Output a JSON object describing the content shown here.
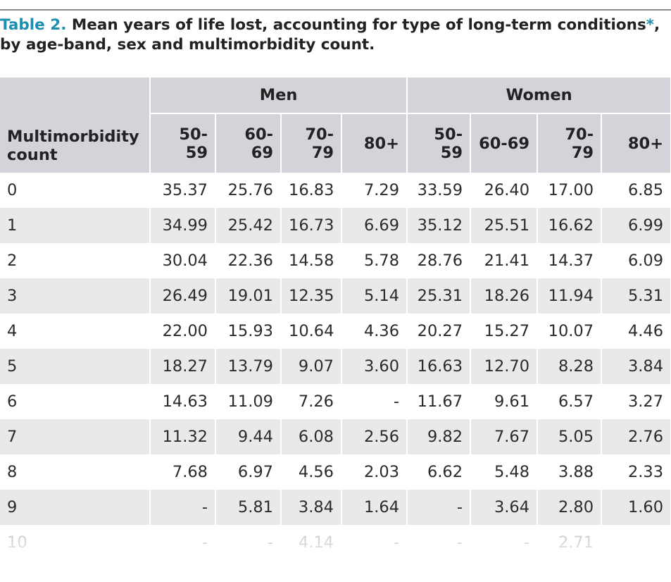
{
  "caption": {
    "label": "Table 2.",
    "text": " Mean years of life lost, accounting for type of long-term conditions",
    "star": "*",
    "text_end": ",",
    "line2": "by age-band, sex and multimorbidity count."
  },
  "table": {
    "group_headers": [
      "Men",
      "Women"
    ],
    "row_header": "Multimorbidity count",
    "columns": [
      "50-59",
      "60-69",
      "70-79",
      "80+",
      "50-59",
      "60-69",
      "70-79",
      "80+"
    ],
    "rows": [
      {
        "label": "0",
        "values": [
          "35.37",
          "25.76",
          "16.83",
          "7.29",
          "33.59",
          "26.40",
          "17.00",
          "6.85"
        ]
      },
      {
        "label": "1",
        "values": [
          "34.99",
          "25.42",
          "16.73",
          "6.69",
          "35.12",
          "25.51",
          "16.62",
          "6.99"
        ]
      },
      {
        "label": "2",
        "values": [
          "30.04",
          "22.36",
          "14.58",
          "5.78",
          "28.76",
          "21.41",
          "14.37",
          "6.09"
        ]
      },
      {
        "label": "3",
        "values": [
          "26.49",
          "19.01",
          "12.35",
          "5.14",
          "25.31",
          "18.26",
          "11.94",
          "5.31"
        ]
      },
      {
        "label": "4",
        "values": [
          "22.00",
          "15.93",
          "10.64",
          "4.36",
          "20.27",
          "15.27",
          "10.07",
          "4.46"
        ]
      },
      {
        "label": "5",
        "values": [
          "18.27",
          "13.79",
          "9.07",
          "3.60",
          "16.63",
          "12.70",
          "8.28",
          "3.84"
        ]
      },
      {
        "label": "6",
        "values": [
          "14.63",
          "11.09",
          "7.26",
          "-",
          "11.67",
          "9.61",
          "6.57",
          "3.27"
        ]
      },
      {
        "label": "7",
        "values": [
          "11.32",
          "9.44",
          "6.08",
          "2.56",
          "9.82",
          "7.67",
          "5.05",
          "2.76"
        ]
      },
      {
        "label": "8",
        "values": [
          "7.68",
          "6.97",
          "4.56",
          "2.03",
          "6.62",
          "5.48",
          "3.88",
          "2.33"
        ]
      },
      {
        "label": "9",
        "values": [
          "-",
          "5.81",
          "3.84",
          "1.64",
          "-",
          "3.64",
          "2.80",
          "1.60"
        ]
      },
      {
        "label": "10",
        "values": [
          "-",
          "-",
          "4.14",
          "-",
          "-",
          "-",
          "2.71",
          ""
        ]
      }
    ]
  }
}
